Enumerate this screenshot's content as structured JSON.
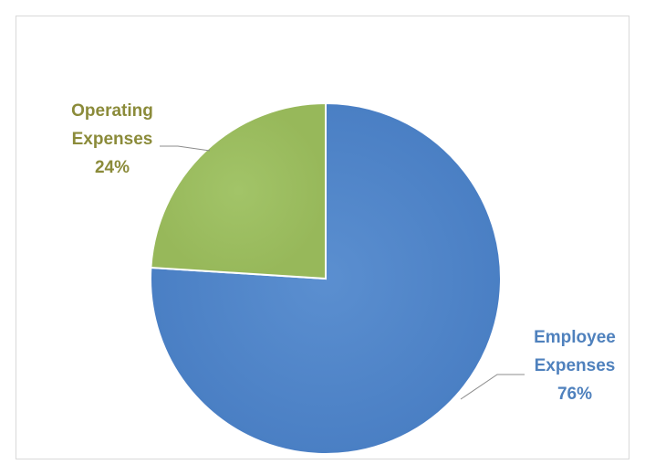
{
  "chart_data": {
    "type": "pie",
    "title": "",
    "slices": [
      {
        "name": "Employee Expenses",
        "label_lines": [
          "Employee",
          "Expenses"
        ],
        "value": 76,
        "percent_label": "76%",
        "color": "#4f81bd",
        "label_color": "#4f81bd"
      },
      {
        "name": "Operating Expenses",
        "label_lines": [
          "Operating",
          "Expenses"
        ],
        "value": 24,
        "percent_label": "24%",
        "color": "#9bbb59",
        "label_color": "#8b8b3a"
      }
    ],
    "legend": "none"
  },
  "colors": {
    "frame_border": "#d9d9d9",
    "leader_line": "#8c8c8c",
    "slice_edge": "#ffffff"
  }
}
